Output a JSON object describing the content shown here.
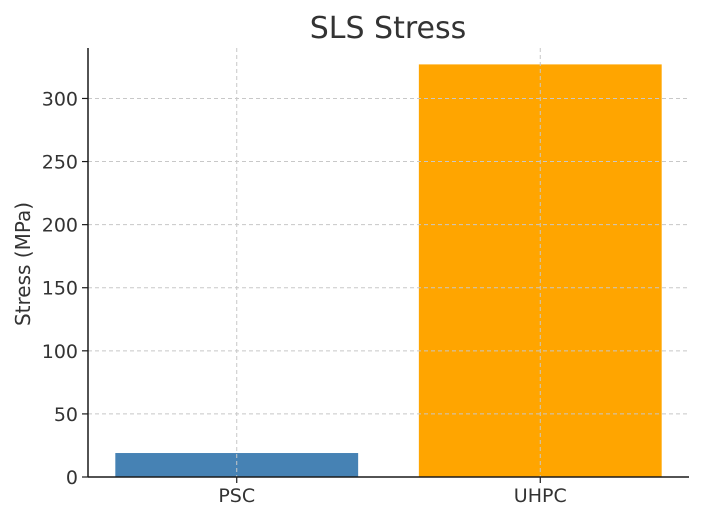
{
  "chart_data": {
    "type": "bar",
    "title": "SLS Stress",
    "xlabel": "",
    "ylabel": "Stress (MPa)",
    "categories": [
      "PSC",
      "UHPC"
    ],
    "values": [
      19,
      327
    ],
    "bar_colors": [
      "#4682b4",
      "#ffa500"
    ],
    "ylim": [
      0,
      340
    ],
    "yticks": [
      0,
      50,
      100,
      150,
      200,
      250,
      300
    ],
    "grid": true
  }
}
